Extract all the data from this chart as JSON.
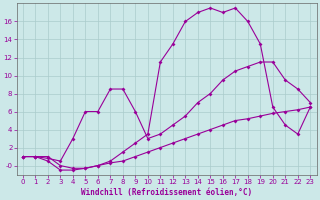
{
  "xlabel": "Windchill (Refroidissement éolien,°C)",
  "ylabel": "",
  "bg_color": "#cce8e8",
  "line_color": "#990099",
  "grid_color": "#aacccc",
  "axis_color": "#666666",
  "xlim": [
    -0.5,
    23.5
  ],
  "ylim": [
    -1.0,
    18.0
  ],
  "xticks": [
    0,
    1,
    2,
    3,
    4,
    5,
    6,
    7,
    8,
    9,
    10,
    11,
    12,
    13,
    14,
    15,
    16,
    17,
    18,
    19,
    20,
    21,
    22,
    23
  ],
  "yticks": [
    0,
    2,
    4,
    6,
    8,
    10,
    12,
    14,
    16
  ],
  "ytick_labels": [
    "-0",
    "2",
    "4",
    "6",
    "8",
    "10",
    "12",
    "14",
    "16"
  ],
  "line1_x": [
    0,
    1,
    2,
    3,
    4,
    5,
    6,
    7,
    8,
    9,
    10,
    11,
    12,
    13,
    14,
    15,
    16,
    17,
    18,
    19,
    20,
    21,
    22,
    23
  ],
  "line1_y": [
    1.0,
    1.0,
    1.0,
    0.0,
    -0.3,
    -0.3,
    0.0,
    0.3,
    0.5,
    1.0,
    1.5,
    2.0,
    2.5,
    3.0,
    3.5,
    4.0,
    4.5,
    5.0,
    5.2,
    5.5,
    5.8,
    6.0,
    6.2,
    6.5
  ],
  "line2_x": [
    0,
    1,
    2,
    3,
    4,
    5,
    6,
    7,
    8,
    9,
    10,
    11,
    12,
    13,
    14,
    15,
    16,
    17,
    18,
    19,
    20,
    21,
    22,
    23
  ],
  "line2_y": [
    1.0,
    1.0,
    0.8,
    0.5,
    3.0,
    6.0,
    6.0,
    8.5,
    8.5,
    6.0,
    3.0,
    3.5,
    4.5,
    5.5,
    7.0,
    8.0,
    9.5,
    10.5,
    11.0,
    11.5,
    11.5,
    9.5,
    8.5,
    7.0
  ],
  "line3_x": [
    0,
    1,
    2,
    3,
    4,
    5,
    6,
    7,
    8,
    9,
    10,
    11,
    12,
    13,
    14,
    15,
    16,
    17,
    18,
    19,
    20,
    21,
    22,
    23
  ],
  "line3_y": [
    1.0,
    1.0,
    0.5,
    -0.5,
    -0.5,
    -0.3,
    0.0,
    0.5,
    1.5,
    2.5,
    3.5,
    11.5,
    13.5,
    16.0,
    17.0,
    17.5,
    17.0,
    17.5,
    16.0,
    13.5,
    6.5,
    4.5,
    3.5,
    6.5
  ],
  "marker": "D",
  "marker_size": 2,
  "line_width": 0.8,
  "tick_fontsize": 5,
  "xlabel_fontsize": 5.5
}
